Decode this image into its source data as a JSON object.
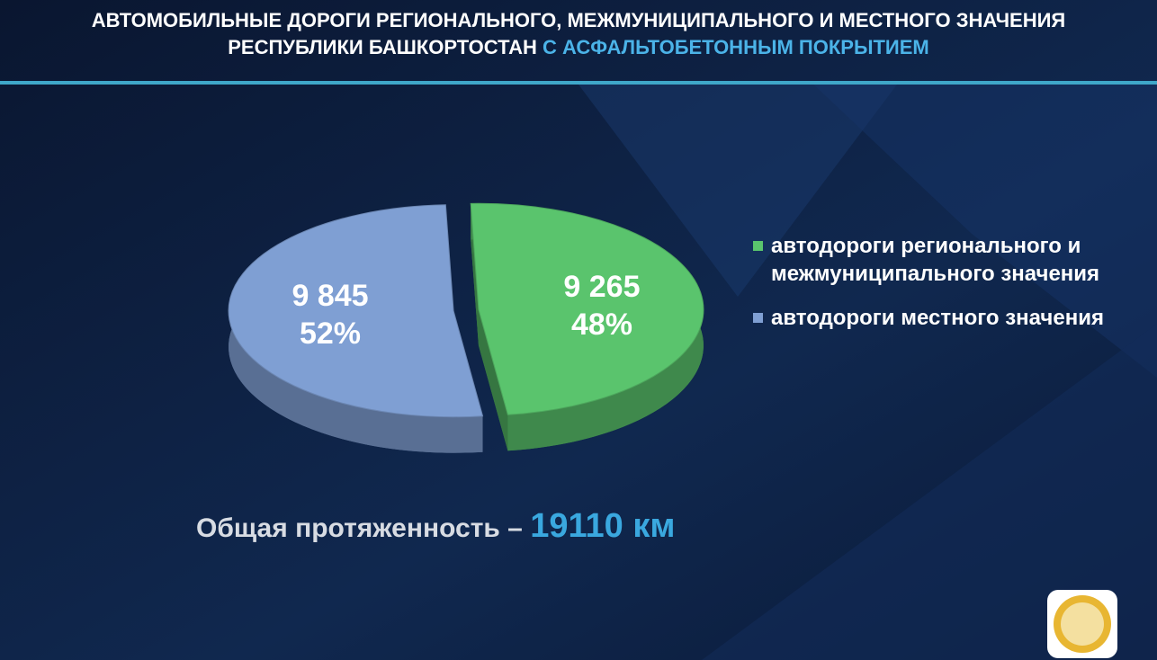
{
  "chart_data": {
    "type": "pie",
    "title": "АВТОМОБИЛЬНЫЕ ДОРОГИ РЕГИОНАЛЬНОГО, МЕЖМУНИЦИПАЛЬНОГО И МЕСТНОГО ЗНАЧЕНИЯ",
    "subtitle": "РЕСПУБЛИКИ БАШКОРТОСТАН",
    "subtitle_highlight": "С АСФАЛЬТОБЕТОННЫМ ПОКРЫТИЕМ",
    "categories": [
      "автодороги регионального и межмуниципального значения",
      "автодороги местного значения"
    ],
    "values": [
      9265,
      9845
    ],
    "value_labels": [
      "9 265",
      "9 845"
    ],
    "percent_labels": [
      "48%",
      "52%"
    ],
    "colors": [
      "#5ac46d",
      "#7f9fd3"
    ],
    "total_label": "Общая протяженность –",
    "total_value_label": "19110 км"
  }
}
